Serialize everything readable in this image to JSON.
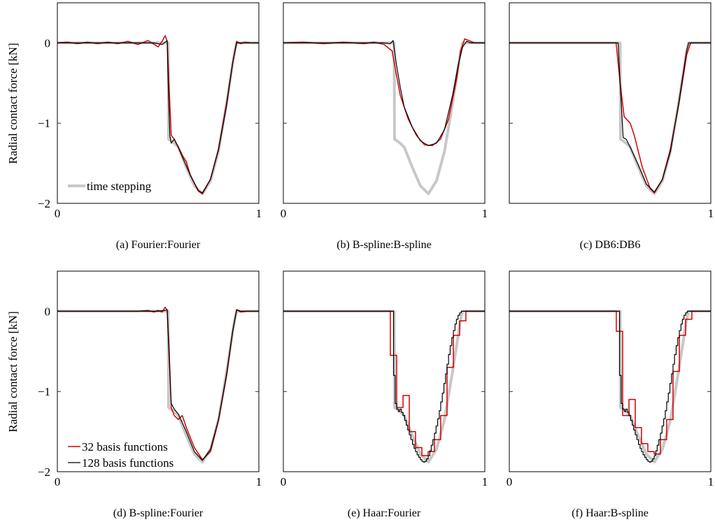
{
  "ylabel": "Radial contact force [kN]",
  "colors": {
    "ts": "#c8c8c8",
    "s32": "#d40000",
    "s128": "#000000"
  },
  "legends": {
    "time_stepping": "time stepping",
    "s32": "32 basis functions",
    "s128": "128 basis functions"
  },
  "chart_data": [
    {
      "type": "line",
      "caption": "(a) Fourier:Fourier",
      "xlim": [
        0,
        1
      ],
      "ylim": [
        -2,
        0.5
      ],
      "xticks": [
        0,
        1
      ],
      "xtick_labels": [
        "0",
        "1"
      ],
      "yticks": [
        0,
        -1,
        -2
      ],
      "ytick_labels": [
        "0",
        "−1",
        "−2"
      ],
      "series": [
        {
          "key": "ts",
          "x": [
            0,
            0.55,
            0.552,
            0.58,
            0.6,
            0.64,
            0.68,
            0.72,
            0.76,
            0.8,
            0.84,
            0.88,
            0.89,
            1
          ],
          "y": [
            0,
            0,
            -1.2,
            -1.25,
            -1.3,
            -1.55,
            -1.78,
            -1.88,
            -1.72,
            -1.35,
            -0.75,
            -0.1,
            0,
            0
          ]
        },
        {
          "key": "s32",
          "x": [
            0,
            0.05,
            0.1,
            0.15,
            0.2,
            0.25,
            0.3,
            0.35,
            0.4,
            0.45,
            0.5,
            0.52,
            0.535,
            0.545,
            0.552,
            0.565,
            0.58,
            0.6,
            0.62,
            0.64,
            0.66,
            0.7,
            0.72,
            0.76,
            0.8,
            0.84,
            0.87,
            0.89,
            0.91,
            0.93,
            0.96,
            1
          ],
          "y": [
            0,
            0.01,
            -0.01,
            0.01,
            -0.01,
            0.01,
            -0.01,
            0.02,
            -0.02,
            0.03,
            -0.05,
            0.02,
            0.09,
            0.02,
            -0.4,
            -1.15,
            -1.2,
            -1.3,
            -1.4,
            -1.48,
            -1.65,
            -1.85,
            -1.88,
            -1.7,
            -1.32,
            -0.75,
            -0.25,
            0.02,
            -0.01,
            0.01,
            0,
            0
          ]
        },
        {
          "key": "s128",
          "x": [
            0,
            0.1,
            0.2,
            0.3,
            0.4,
            0.48,
            0.52,
            0.545,
            0.55,
            0.558,
            0.565,
            0.58,
            0.6,
            0.62,
            0.66,
            0.7,
            0.72,
            0.76,
            0.8,
            0.84,
            0.87,
            0.89,
            0.92,
            1
          ],
          "y": [
            0,
            0,
            0,
            0,
            0,
            0,
            -0.02,
            0.03,
            -0.5,
            -1.15,
            -1.25,
            -1.2,
            -1.3,
            -1.42,
            -1.65,
            -1.84,
            -1.87,
            -1.7,
            -1.33,
            -0.78,
            -0.25,
            0,
            0,
            0
          ]
        }
      ]
    },
    {
      "type": "line",
      "caption": "(b) B-spline:B-spline",
      "xlim": [
        0,
        1
      ],
      "ylim": [
        -2,
        0.5
      ],
      "xticks": [
        0,
        1
      ],
      "xtick_labels": [
        "0",
        "1"
      ],
      "yticks": [
        0,
        -1,
        -2
      ],
      "ytick_labels": [
        "",
        "",
        ""
      ],
      "series": [
        {
          "key": "ts",
          "x": [
            0,
            0.55,
            0.552,
            0.58,
            0.6,
            0.64,
            0.68,
            0.72,
            0.76,
            0.8,
            0.84,
            0.88,
            0.89,
            1
          ],
          "y": [
            0,
            0,
            -1.2,
            -1.25,
            -1.3,
            -1.55,
            -1.78,
            -1.88,
            -1.72,
            -1.35,
            -0.75,
            -0.1,
            0,
            0
          ]
        },
        {
          "key": "s32",
          "x": [
            0,
            0.1,
            0.2,
            0.3,
            0.4,
            0.45,
            0.5,
            0.54,
            0.56,
            0.58,
            0.62,
            0.66,
            0.7,
            0.74,
            0.78,
            0.82,
            0.86,
            0.88,
            0.9,
            0.92,
            0.95,
            1
          ],
          "y": [
            0,
            0.01,
            -0.01,
            0.01,
            -0.01,
            0.01,
            -0.02,
            -0.1,
            -0.38,
            -0.65,
            -0.95,
            -1.15,
            -1.27,
            -1.28,
            -1.2,
            -0.95,
            -0.45,
            -0.1,
            0.05,
            0.03,
            0,
            0
          ]
        },
        {
          "key": "s128",
          "x": [
            0,
            0.1,
            0.2,
            0.3,
            0.4,
            0.5,
            0.53,
            0.545,
            0.56,
            0.58,
            0.6,
            0.64,
            0.68,
            0.72,
            0.76,
            0.8,
            0.84,
            0.87,
            0.89,
            0.91,
            0.93,
            1
          ],
          "y": [
            0,
            0,
            0,
            0,
            0,
            0,
            -0.01,
            0.03,
            -0.25,
            -0.55,
            -0.8,
            -1.05,
            -1.22,
            -1.28,
            -1.25,
            -1.08,
            -0.65,
            -0.25,
            -0.05,
            0.02,
            0,
            0
          ]
        }
      ]
    },
    {
      "type": "line",
      "caption": "(c) DB6:DB6",
      "xlim": [
        0,
        1
      ],
      "ylim": [
        -2,
        0.5
      ],
      "xticks": [
        0,
        1
      ],
      "xtick_labels": [
        "",
        "1"
      ],
      "yticks": [
        0,
        -1,
        -2
      ],
      "ytick_labels": [
        "",
        "",
        ""
      ],
      "series": [
        {
          "key": "ts",
          "x": [
            0,
            0.55,
            0.552,
            0.58,
            0.6,
            0.64,
            0.68,
            0.72,
            0.76,
            0.8,
            0.84,
            0.88,
            0.89,
            1
          ],
          "y": [
            0,
            0,
            -1.2,
            -1.25,
            -1.3,
            -1.55,
            -1.78,
            -1.88,
            -1.72,
            -1.35,
            -0.75,
            -0.1,
            0,
            0
          ]
        },
        {
          "key": "s32",
          "x": [
            0,
            0.1,
            0.2,
            0.3,
            0.4,
            0.5,
            0.53,
            0.55,
            0.57,
            0.6,
            0.62,
            0.66,
            0.7,
            0.72,
            0.76,
            0.8,
            0.84,
            0.88,
            0.9,
            1
          ],
          "y": [
            0,
            0,
            0,
            0,
            0,
            0,
            0,
            -0.5,
            -0.92,
            -1.0,
            -1.15,
            -1.55,
            -1.82,
            -1.87,
            -1.7,
            -1.32,
            -0.78,
            -0.15,
            0,
            0
          ]
        },
        {
          "key": "s128",
          "x": [
            0,
            0.1,
            0.2,
            0.3,
            0.4,
            0.5,
            0.54,
            0.55,
            0.565,
            0.58,
            0.6,
            0.64,
            0.68,
            0.72,
            0.76,
            0.8,
            0.84,
            0.88,
            0.89,
            1
          ],
          "y": [
            0,
            0,
            0,
            0,
            0,
            0,
            0,
            -0.5,
            -1.18,
            -1.2,
            -1.3,
            -1.52,
            -1.76,
            -1.86,
            -1.7,
            -1.35,
            -0.76,
            -0.1,
            0,
            0
          ]
        }
      ]
    },
    {
      "type": "line",
      "caption": "(d) B-spline:Fourier",
      "xlim": [
        0,
        1
      ],
      "ylim": [
        -2,
        0.5
      ],
      "xticks": [
        0,
        1
      ],
      "xtick_labels": [
        "0",
        "1"
      ],
      "yticks": [
        0,
        -1,
        -2
      ],
      "ytick_labels": [
        "0",
        "−1",
        "−2"
      ],
      "series": [
        {
          "key": "ts",
          "x": [
            0,
            0.55,
            0.552,
            0.58,
            0.6,
            0.64,
            0.68,
            0.72,
            0.76,
            0.8,
            0.84,
            0.88,
            0.89,
            1
          ],
          "y": [
            0,
            0,
            -1.2,
            -1.25,
            -1.3,
            -1.55,
            -1.78,
            -1.88,
            -1.72,
            -1.35,
            -0.75,
            -0.1,
            0,
            0
          ]
        },
        {
          "key": "s32",
          "x": [
            0,
            0.1,
            0.2,
            0.3,
            0.4,
            0.45,
            0.48,
            0.5,
            0.52,
            0.535,
            0.545,
            0.555,
            0.565,
            0.58,
            0.6,
            0.62,
            0.64,
            0.68,
            0.72,
            0.76,
            0.8,
            0.84,
            0.87,
            0.89,
            0.91,
            0.94,
            1
          ],
          "y": [
            0,
            0,
            0,
            0,
            0,
            0.01,
            -0.01,
            0.01,
            -0.01,
            0.05,
            0.01,
            -0.5,
            -1.2,
            -1.3,
            -1.35,
            -1.3,
            -1.45,
            -1.7,
            -1.85,
            -1.75,
            -1.35,
            -0.8,
            -0.25,
            0.02,
            -0.01,
            0,
            0
          ]
        },
        {
          "key": "s128",
          "x": [
            0,
            0.1,
            0.2,
            0.3,
            0.4,
            0.5,
            0.535,
            0.545,
            0.555,
            0.565,
            0.58,
            0.6,
            0.64,
            0.68,
            0.72,
            0.76,
            0.8,
            0.84,
            0.87,
            0.89,
            0.91,
            1
          ],
          "y": [
            0,
            0,
            0,
            0,
            0,
            0,
            0.01,
            0.02,
            -0.6,
            -1.15,
            -1.22,
            -1.28,
            -1.5,
            -1.75,
            -1.86,
            -1.72,
            -1.35,
            -0.78,
            -0.25,
            0.02,
            0,
            0
          ]
        }
      ]
    },
    {
      "type": "line",
      "caption": "(e) Haar:Fourier",
      "xlim": [
        0,
        1
      ],
      "ylim": [
        -2,
        0.5
      ],
      "xticks": [
        0,
        1
      ],
      "xtick_labels": [
        "0",
        "1"
      ],
      "yticks": [
        0,
        -1,
        -2
      ],
      "ytick_labels": [
        "",
        "",
        ""
      ],
      "series": [
        {
          "key": "ts",
          "x": [
            0,
            0.55,
            0.552,
            0.58,
            0.6,
            0.64,
            0.68,
            0.72,
            0.76,
            0.8,
            0.84,
            0.88,
            0.89,
            1
          ],
          "y": [
            0,
            0,
            -1.2,
            -1.25,
            -1.3,
            -1.55,
            -1.78,
            -1.88,
            -1.72,
            -1.35,
            -0.75,
            -0.1,
            0,
            0
          ]
        },
        {
          "key": "s32",
          "step": true,
          "x": [
            0,
            0.531,
            0.5625,
            0.594,
            0.625,
            0.656,
            0.6875,
            0.719,
            0.75,
            0.781,
            0.8125,
            0.844,
            0.875,
            0.906,
            1
          ],
          "y": [
            0,
            -0.55,
            -1.2,
            -1.05,
            -1.5,
            -1.7,
            -1.8,
            -1.75,
            -1.6,
            -1.3,
            -0.7,
            -0.3,
            -0.12,
            0,
            0
          ]
        },
        {
          "key": "s128",
          "step": true,
          "x": [
            0,
            0.547,
            0.555,
            0.563,
            0.571,
            0.578,
            0.586,
            0.594,
            0.602,
            0.61,
            0.617,
            0.625,
            0.633,
            0.641,
            0.649,
            0.656,
            0.664,
            0.672,
            0.68,
            0.6875,
            0.695,
            0.703,
            0.711,
            0.719,
            0.727,
            0.734,
            0.742,
            0.75,
            0.758,
            0.766,
            0.774,
            0.781,
            0.789,
            0.797,
            0.805,
            0.8125,
            0.82,
            0.828,
            0.836,
            0.844,
            0.852,
            0.859,
            0.867,
            0.875,
            0.883,
            0.891,
            1
          ],
          "y": [
            0,
            -0.8,
            -1.15,
            -1.22,
            -1.25,
            -1.22,
            -1.26,
            -1.3,
            -1.36,
            -1.42,
            -1.48,
            -1.54,
            -1.6,
            -1.66,
            -1.71,
            -1.75,
            -1.79,
            -1.82,
            -1.85,
            -1.87,
            -1.88,
            -1.87,
            -1.84,
            -1.8,
            -1.74,
            -1.67,
            -1.6,
            -1.52,
            -1.43,
            -1.34,
            -1.24,
            -1.13,
            -1.02,
            -0.9,
            -0.78,
            -0.66,
            -0.54,
            -0.43,
            -0.33,
            -0.24,
            -0.16,
            -0.1,
            -0.05,
            -0.02,
            0,
            0,
            0
          ]
        }
      ]
    },
    {
      "type": "line",
      "caption": "(f) Haar:B-spline",
      "xlim": [
        0,
        1
      ],
      "ylim": [
        -2,
        0.5
      ],
      "xticks": [
        0,
        1
      ],
      "xtick_labels": [
        "0",
        "1"
      ],
      "yticks": [
        0,
        -1,
        -2
      ],
      "ytick_labels": [
        "",
        "",
        ""
      ],
      "series": [
        {
          "key": "ts",
          "x": [
            0,
            0.55,
            0.552,
            0.58,
            0.6,
            0.64,
            0.68,
            0.72,
            0.76,
            0.8,
            0.84,
            0.88,
            0.89,
            1
          ],
          "y": [
            0,
            0,
            -1.2,
            -1.25,
            -1.3,
            -1.55,
            -1.78,
            -1.88,
            -1.72,
            -1.35,
            -0.75,
            -0.1,
            0,
            0
          ]
        },
        {
          "key": "s32",
          "step": true,
          "x": [
            0,
            0.531,
            0.5625,
            0.594,
            0.625,
            0.656,
            0.6875,
            0.719,
            0.75,
            0.781,
            0.8125,
            0.844,
            0.875,
            0.906,
            1
          ],
          "y": [
            0,
            -0.25,
            -1.3,
            -1.1,
            -1.45,
            -1.65,
            -1.75,
            -1.78,
            -1.6,
            -1.35,
            -0.75,
            -0.3,
            -0.1,
            0,
            0
          ]
        },
        {
          "key": "s128",
          "step": true,
          "x": [
            0,
            0.547,
            0.555,
            0.563,
            0.571,
            0.578,
            0.586,
            0.594,
            0.602,
            0.61,
            0.617,
            0.625,
            0.633,
            0.641,
            0.649,
            0.656,
            0.664,
            0.672,
            0.68,
            0.6875,
            0.695,
            0.703,
            0.711,
            0.719,
            0.727,
            0.734,
            0.742,
            0.75,
            0.758,
            0.766,
            0.774,
            0.781,
            0.789,
            0.797,
            0.805,
            0.8125,
            0.82,
            0.828,
            0.836,
            0.844,
            0.852,
            0.859,
            0.867,
            0.875,
            0.883,
            0.891,
            1
          ],
          "y": [
            0,
            -0.8,
            -1.15,
            -1.22,
            -1.25,
            -1.22,
            -1.26,
            -1.3,
            -1.36,
            -1.42,
            -1.48,
            -1.54,
            -1.6,
            -1.66,
            -1.71,
            -1.75,
            -1.79,
            -1.82,
            -1.85,
            -1.87,
            -1.88,
            -1.87,
            -1.84,
            -1.8,
            -1.74,
            -1.67,
            -1.6,
            -1.52,
            -1.43,
            -1.34,
            -1.24,
            -1.13,
            -1.02,
            -0.9,
            -0.78,
            -0.66,
            -0.54,
            -0.43,
            -0.33,
            -0.24,
            -0.16,
            -0.1,
            -0.05,
            -0.02,
            0,
            0,
            0
          ]
        }
      ]
    }
  ]
}
